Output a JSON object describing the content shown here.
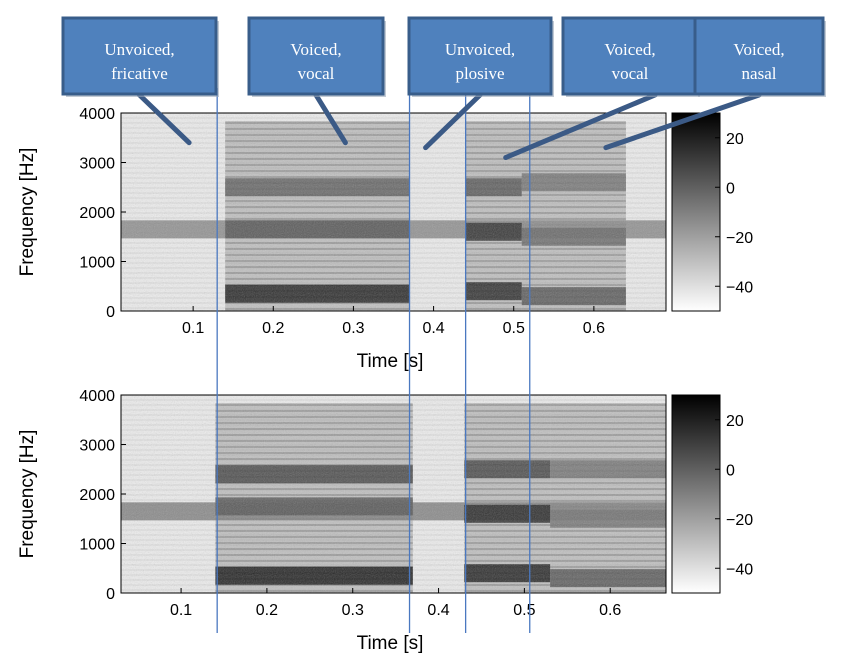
{
  "annotations": [
    {
      "line1": "Unvoiced,",
      "line2": "fricative",
      "target_time": 0.095,
      "target_freq": 3400
    },
    {
      "line1": "Voiced,",
      "line2": "vocal",
      "target_time": 0.29,
      "target_freq": 3400
    },
    {
      "line1": "Unvoiced,",
      "line2": "plosive",
      "target_time": 0.39,
      "target_freq": 3300
    },
    {
      "line1": "Voiced,",
      "line2": "vocal",
      "target_time": 0.49,
      "target_freq": 3100
    },
    {
      "line1": "Voiced,",
      "line2": "nasal",
      "target_time": 0.615,
      "target_freq": 3300
    }
  ],
  "segment_boundaries": [
    0.13,
    0.37,
    0.44,
    0.52
  ],
  "chart_data": [
    {
      "type": "heatmap",
      "title": "",
      "xlabel": "Time [s]",
      "ylabel": "Frequency [Hz]",
      "xlim": [
        0.01,
        0.69
      ],
      "ylim": [
        0,
        4000
      ],
      "x_ticks": [
        0.1,
        0.2,
        0.3,
        0.4,
        0.5,
        0.6
      ],
      "x_tick_labels": [
        "0.1",
        "0.2",
        "0.3",
        "0.4",
        "0.5",
        "0.6"
      ],
      "y_ticks": [
        0,
        1000,
        2000,
        3000,
        4000
      ],
      "y_tick_labels": [
        "0",
        "1000",
        "2000",
        "3000",
        "4000"
      ],
      "colorbar": {
        "range": [
          -50,
          30
        ],
        "ticks": [
          20,
          0,
          -20,
          -40
        ],
        "tick_labels": [
          "20",
          "0",
          "−20",
          "−40"
        ],
        "colormap": "gray (white=low, black=high)"
      },
      "formants": [
        {
          "t0": 0.01,
          "t1": 0.69,
          "f": 1650,
          "strength": 0.35
        },
        {
          "t0": 0.14,
          "t1": 0.37,
          "f": 350,
          "strength": 0.9
        },
        {
          "t0": 0.14,
          "t1": 0.37,
          "f": 1650,
          "strength": 0.6
        },
        {
          "t0": 0.14,
          "t1": 0.37,
          "f": 2500,
          "strength": 0.55
        },
        {
          "t0": 0.44,
          "t1": 0.51,
          "f": 400,
          "strength": 0.85
        },
        {
          "t0": 0.44,
          "t1": 0.51,
          "f": 1600,
          "strength": 0.8
        },
        {
          "t0": 0.44,
          "t1": 0.51,
          "f": 2500,
          "strength": 0.6
        },
        {
          "t0": 0.51,
          "t1": 0.64,
          "f": 300,
          "strength": 0.6
        },
        {
          "t0": 0.51,
          "t1": 0.64,
          "f": 1500,
          "strength": 0.5
        },
        {
          "t0": 0.51,
          "t1": 0.64,
          "f": 2600,
          "strength": 0.45
        }
      ]
    },
    {
      "type": "heatmap",
      "title": "",
      "xlabel": "Time [s]",
      "ylabel": "Frequency [Hz]",
      "xlim": [
        0.03,
        0.665
      ],
      "ylim": [
        0,
        4000
      ],
      "x_ticks": [
        0.1,
        0.2,
        0.3,
        0.4,
        0.5,
        0.6
      ],
      "x_tick_labels": [
        "0.1",
        "0.2",
        "0.3",
        "0.4",
        "0.5",
        "0.6"
      ],
      "y_ticks": [
        0,
        1000,
        2000,
        3000,
        4000
      ],
      "y_tick_labels": [
        "0",
        "1000",
        "2000",
        "3000",
        "4000"
      ],
      "colorbar": {
        "range": [
          -50,
          30
        ],
        "ticks": [
          20,
          0,
          -20,
          -40
        ],
        "tick_labels": [
          "20",
          "0",
          "−20",
          "−40"
        ],
        "colormap": "gray (white=low, black=high)"
      },
      "formants": [
        {
          "t0": 0.03,
          "t1": 0.665,
          "f": 1650,
          "strength": 0.4
        },
        {
          "t0": 0.14,
          "t1": 0.37,
          "f": 350,
          "strength": 0.95
        },
        {
          "t0": 0.14,
          "t1": 0.37,
          "f": 1750,
          "strength": 0.6
        },
        {
          "t0": 0.14,
          "t1": 0.37,
          "f": 2400,
          "strength": 0.7
        },
        {
          "t0": 0.43,
          "t1": 0.53,
          "f": 400,
          "strength": 0.9
        },
        {
          "t0": 0.43,
          "t1": 0.53,
          "f": 1600,
          "strength": 0.85
        },
        {
          "t0": 0.43,
          "t1": 0.53,
          "f": 2500,
          "strength": 0.7
        },
        {
          "t0": 0.53,
          "t1": 0.665,
          "f": 300,
          "strength": 0.6
        },
        {
          "t0": 0.53,
          "t1": 0.665,
          "f": 1500,
          "strength": 0.45
        },
        {
          "t0": 0.53,
          "t1": 0.665,
          "f": 2500,
          "strength": 0.45
        }
      ]
    }
  ],
  "colors": {
    "box_fill": "#4f81bd",
    "box_border": "#385d8a",
    "pointer": "#3b5a86",
    "boundary_line": "#4a78c0"
  }
}
